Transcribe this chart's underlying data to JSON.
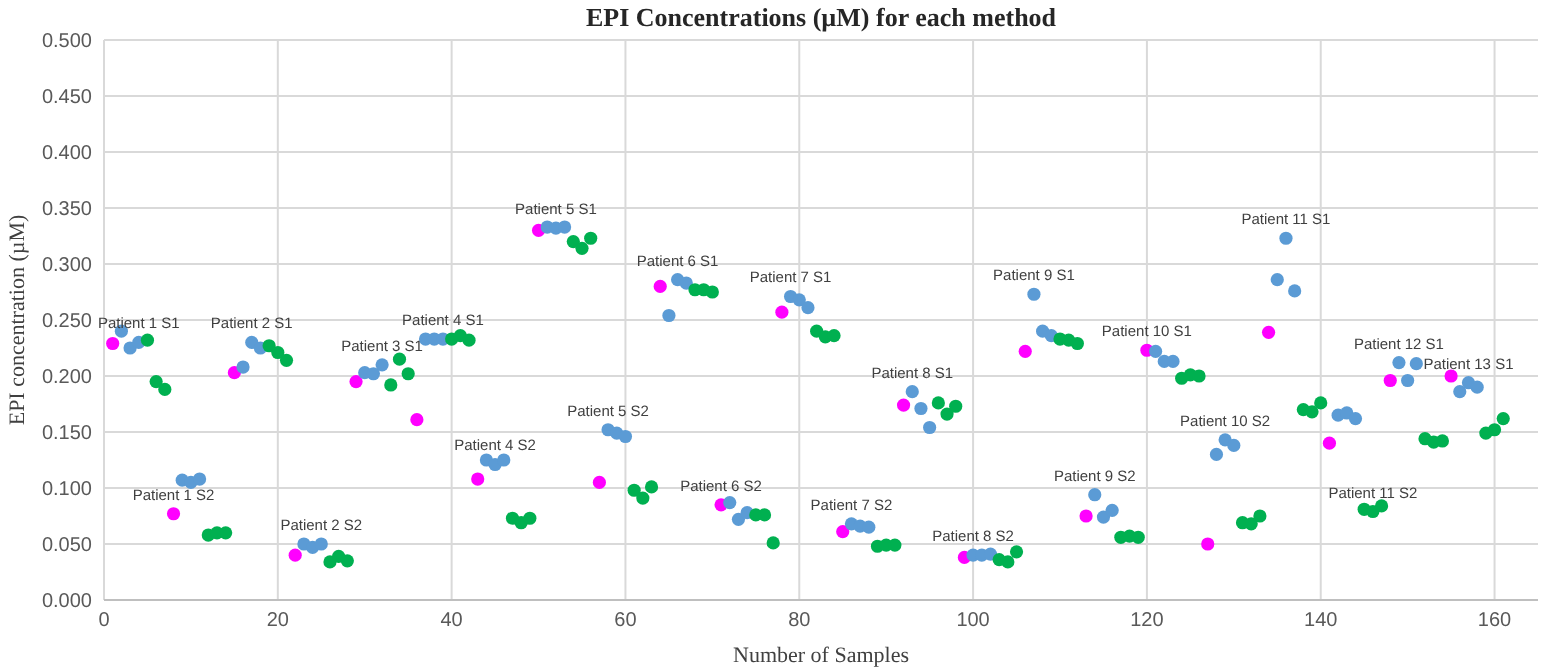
{
  "chart_data": {
    "type": "scatter",
    "title": "EPI Concentrations (µM) for each method",
    "xlabel": "Number of Samples",
    "ylabel": "EPI concentration (µM)",
    "xlim": [
      0,
      165
    ],
    "xticks": [
      0,
      20,
      40,
      60,
      80,
      100,
      120,
      140,
      160
    ],
    "ylim": [
      0,
      0.5
    ],
    "yticks": [
      {
        "value": 0,
        "label": "0.000"
      },
      {
        "value": 0.05,
        "label": "0.050"
      },
      {
        "value": 0.1,
        "label": "0.100"
      },
      {
        "value": 0.15,
        "label": "0.150"
      },
      {
        "value": 0.2,
        "label": "0.200"
      },
      {
        "value": 0.25,
        "label": "0.250"
      },
      {
        "value": 0.3,
        "label": "0.300"
      },
      {
        "value": 0.35,
        "label": "0.350"
      },
      {
        "value": 0.4,
        "label": "0.400"
      },
      {
        "value": 0.45,
        "label": "0.450"
      },
      {
        "value": 0.5,
        "label": "0.500"
      }
    ],
    "grid": true,
    "marker": "circle",
    "series": [
      {
        "color": "#ff00ff",
        "x": [
          1,
          8,
          15,
          22,
          29,
          36,
          43,
          50,
          57,
          64,
          71,
          78,
          85,
          92,
          99,
          106,
          113,
          120,
          127,
          134,
          141,
          148,
          155
        ],
        "values": [
          0.229,
          0.077,
          0.203,
          0.04,
          0.195,
          0.161,
          0.108,
          0.33,
          0.105,
          0.28,
          0.085,
          0.257,
          0.061,
          0.174,
          0.038,
          0.222,
          0.075,
          0.223,
          0.05,
          0.239,
          0.14,
          0.196,
          0.2
        ]
      },
      {
        "color": "#5b9bd5",
        "x": [
          2,
          3,
          4,
          9,
          10,
          11,
          16,
          17,
          18,
          23,
          24,
          25,
          30,
          31,
          32,
          37,
          38,
          39,
          44,
          45,
          46,
          51,
          52,
          53,
          58,
          59,
          60,
          65,
          66,
          67,
          72,
          73,
          74,
          79,
          80,
          81,
          86,
          87,
          88,
          93,
          94,
          95,
          100,
          101,
          102,
          107,
          108,
          109,
          114,
          115,
          116,
          121,
          122,
          123,
          128,
          129,
          130,
          135,
          136,
          137,
          142,
          143,
          144,
          149,
          150,
          151,
          156,
          157,
          158
        ],
        "values": [
          0.24,
          0.225,
          0.23,
          0.107,
          0.105,
          0.108,
          0.208,
          0.23,
          0.225,
          0.05,
          0.047,
          0.05,
          0.203,
          0.202,
          0.21,
          0.233,
          0.233,
          0.233,
          0.125,
          0.121,
          0.125,
          0.333,
          0.332,
          0.333,
          0.152,
          0.149,
          0.146,
          0.254,
          0.286,
          0.283,
          0.087,
          0.072,
          0.078,
          0.271,
          0.268,
          0.261,
          0.068,
          0.066,
          0.065,
          0.186,
          0.171,
          0.154,
          0.04,
          0.04,
          0.041,
          0.273,
          0.24,
          0.236,
          0.094,
          0.074,
          0.08,
          0.222,
          0.213,
          0.213,
          0.13,
          0.143,
          0.138,
          0.286,
          0.323,
          0.276,
          0.165,
          0.167,
          0.162,
          0.212,
          0.196,
          0.211,
          0.186,
          0.194,
          0.19
        ]
      },
      {
        "color": "#00b050",
        "x": [
          5,
          6,
          7,
          12,
          13,
          14,
          19,
          20,
          21,
          26,
          27,
          28,
          33,
          34,
          35,
          40,
          41,
          42,
          47,
          48,
          49,
          54,
          55,
          56,
          61,
          62,
          63,
          68,
          69,
          70,
          75,
          76,
          77,
          82,
          83,
          84,
          89,
          90,
          91,
          96,
          97,
          98,
          103,
          104,
          105,
          110,
          111,
          112,
          117,
          118,
          119,
          124,
          125,
          126,
          131,
          132,
          133,
          138,
          139,
          140,
          145,
          146,
          147,
          152,
          153,
          154,
          159,
          160,
          161
        ],
        "values": [
          0.232,
          0.195,
          0.188,
          0.058,
          0.06,
          0.06,
          0.227,
          0.221,
          0.214,
          0.034,
          0.039,
          0.035,
          0.192,
          0.215,
          0.202,
          0.233,
          0.236,
          0.232,
          0.073,
          0.069,
          0.073,
          0.32,
          0.314,
          0.323,
          0.098,
          0.091,
          0.101,
          0.277,
          0.277,
          0.275,
          0.076,
          0.076,
          0.051,
          0.24,
          0.235,
          0.236,
          0.048,
          0.049,
          0.049,
          0.176,
          0.166,
          0.173,
          0.036,
          0.034,
          0.043,
          0.233,
          0.232,
          0.229,
          0.056,
          0.057,
          0.056,
          0.198,
          0.201,
          0.2,
          0.069,
          0.068,
          0.075,
          0.17,
          0.168,
          0.176,
          0.081,
          0.079,
          0.084,
          0.144,
          0.141,
          0.142,
          0.149,
          0.152,
          0.162
        ]
      }
    ],
    "annotations": [
      {
        "text": "Patient 1 S1",
        "x": 4,
        "y": 0.23
      },
      {
        "text": "Patient 1 S2",
        "x": 8,
        "y": 0.077
      },
      {
        "text": "Patient 2 S1",
        "x": 17,
        "y": 0.23
      },
      {
        "text": "Patient 2 S2",
        "x": 25,
        "y": 0.05
      },
      {
        "text": "Patient 3 S1",
        "x": 32,
        "y": 0.21
      },
      {
        "text": "Patient 4 S1",
        "x": 39,
        "y": 0.233
      },
      {
        "text": "Patient 4 S2",
        "x": 45,
        "y": 0.121
      },
      {
        "text": "Patient 5 S1",
        "x": 52,
        "y": 0.332
      },
      {
        "text": "Patient 5 S2",
        "x": 58,
        "y": 0.152
      },
      {
        "text": "Patient 6 S1",
        "x": 66,
        "y": 0.286
      },
      {
        "text": "Patient 6 S2",
        "x": 71,
        "y": 0.085
      },
      {
        "text": "Patient 7 S1",
        "x": 79,
        "y": 0.271
      },
      {
        "text": "Patient 7 S2",
        "x": 86,
        "y": 0.068
      },
      {
        "text": "Patient 8 S1",
        "x": 93,
        "y": 0.186
      },
      {
        "text": "Patient 8 S2",
        "x": 100,
        "y": 0.04
      },
      {
        "text": "Patient 9 S1",
        "x": 107,
        "y": 0.273
      },
      {
        "text": "Patient 9 S2",
        "x": 114,
        "y": 0.094
      },
      {
        "text": "Patient 10 S1",
        "x": 120,
        "y": 0.223
      },
      {
        "text": "Patient 10 S2",
        "x": 129,
        "y": 0.143
      },
      {
        "text": "Patient 11 S1",
        "x": 136,
        "y": 0.323
      },
      {
        "text": "Patient 11 S2",
        "x": 146,
        "y": 0.079
      },
      {
        "text": "Patient 12 S1",
        "x": 149,
        "y": 0.212
      },
      {
        "text": "Patient 13 S1",
        "x": 157,
        "y": 0.194
      }
    ]
  }
}
